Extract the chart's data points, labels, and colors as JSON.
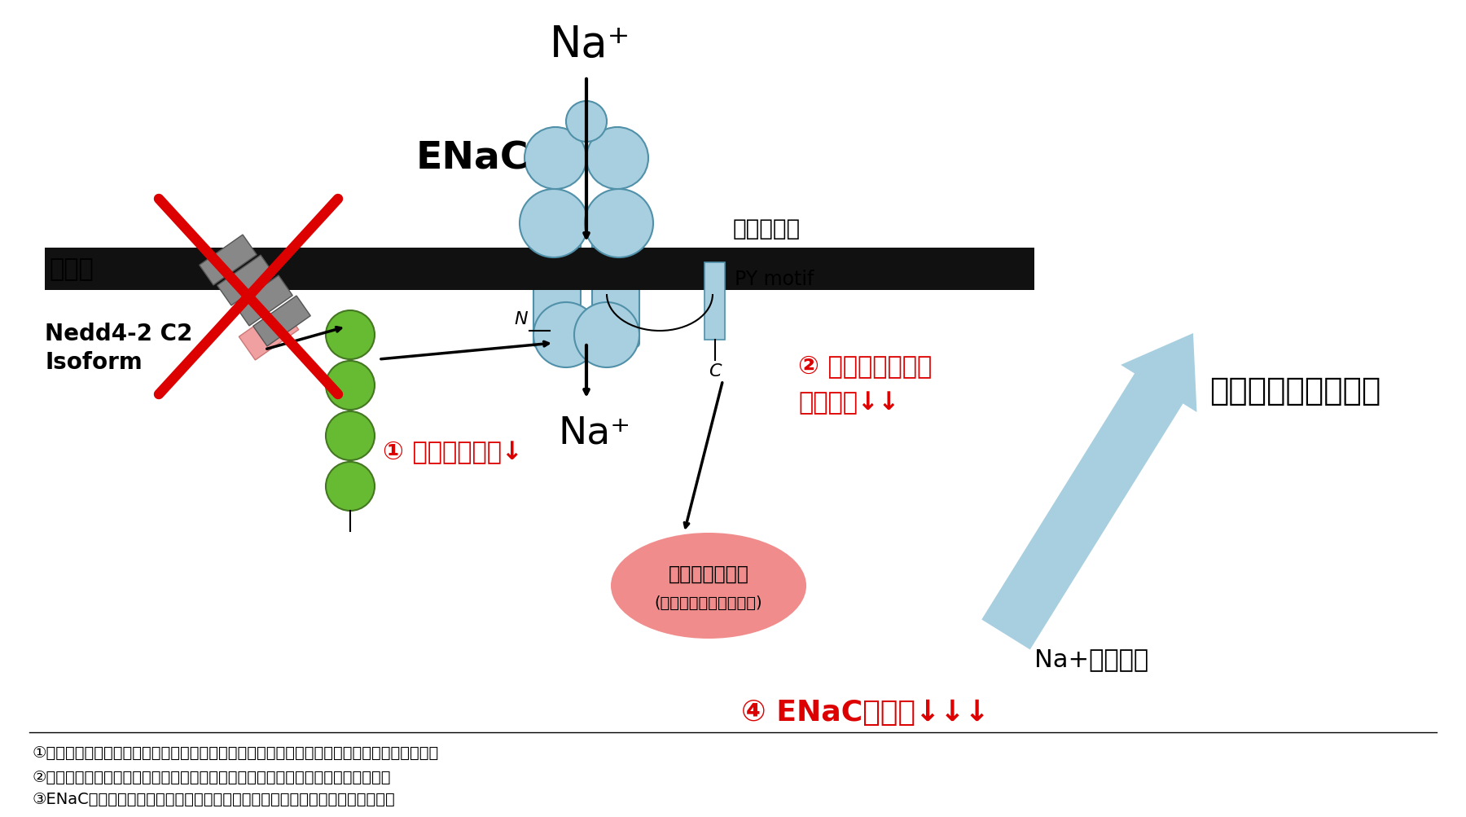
{
  "bg_color": "#ffffff",
  "membrane_color": "#111111",
  "enac_color": "#a8cfe0",
  "enac_outline": "#5090a8",
  "ubiquitin_color": "#66bb33",
  "nedd_gray": "#888888",
  "nedd_pink": "#f0a0a0",
  "red_color": "#dd0000",
  "light_blue_arrow": "#a8cfe0",
  "proteasome_color": "#f08080",
  "py_color": "#a8cfe0",
  "na_top": "Na⁺",
  "enac_label": "ENaC",
  "urinary_label": "尿細管腔側",
  "cell_membrane_label": "細胞膜",
  "py_motif_label": "PY motif",
  "na_bottom": "Na⁺",
  "nedd_label1": "Nedd4-2 C2",
  "nedd_label2": "Isoform",
  "n_label": "N",
  "c_label": "C",
  "label1": "① ユビキチン化↓",
  "label2_1": "② イオンチャネル",
  "label2_2": "の内在化↓↓",
  "label3": "食塩感受性・高血圧",
  "label4": "Na+の再吸収",
  "proteasome1": "プロテアソーム",
  "proteasome2": "(タンパク質の分解酵素)",
  "label5": "④ ENaCの分解↓↓↓",
  "footnote1": "①ユビキチン化　：　不要なタンパク質に目印として付き、これをプロテアソームが分解する",
  "footnote2": "②イオンチャネル　：　細胞膜に存在する輸送体タンパクで、イオンを透過させる",
  "footnote3": "③ENaC　：　尿細管上でナトリウムの再吸収を行う上皮性ナトリウムチャネル"
}
